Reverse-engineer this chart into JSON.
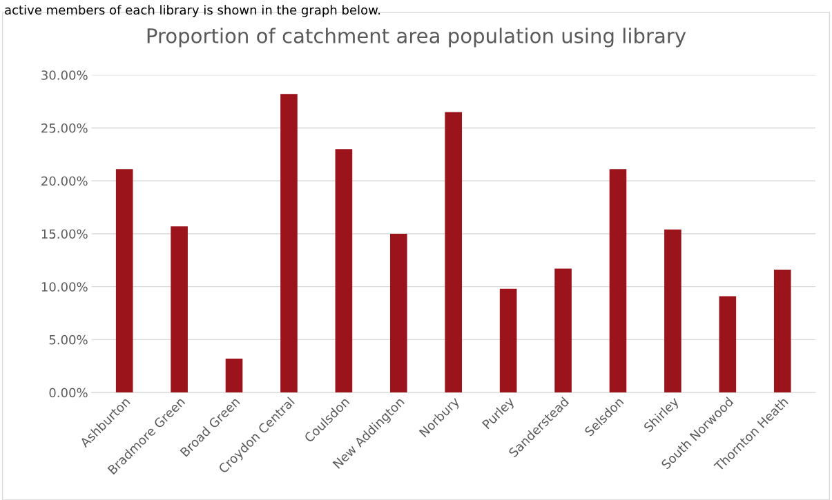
{
  "chart_data": {
    "type": "bar",
    "title": "Proportion of catchment area population using library",
    "annotations": [
      "active members of each library is shown in the graph below."
    ],
    "categories": [
      "Ashburton",
      "Bradmore Green",
      "Broad Green",
      "Croydon Central",
      "Coulsdon",
      "New Addington",
      "Norbury",
      "Purley",
      "Sanderstead",
      "Selsdon",
      "Shirley",
      "South Norwood",
      "Thornton Heath"
    ],
    "values": [
      21.1,
      15.7,
      3.2,
      28.2,
      23.0,
      15.0,
      26.5,
      9.8,
      11.7,
      21.1,
      15.4,
      9.1,
      11.6
    ],
    "color": "#9b141c",
    "ylim": [
      0,
      30
    ],
    "yticks": [
      {
        "value": 0,
        "label": "0.00%"
      },
      {
        "value": 5,
        "label": "5.00%"
      },
      {
        "value": 10,
        "label": "10.00%"
      },
      {
        "value": 15,
        "label": "15.00%"
      },
      {
        "value": 20,
        "label": "20.00%"
      },
      {
        "value": 25,
        "label": "25.00%"
      },
      {
        "value": 30,
        "label": "30.00%"
      }
    ],
    "grid": "y",
    "legend": false
  }
}
